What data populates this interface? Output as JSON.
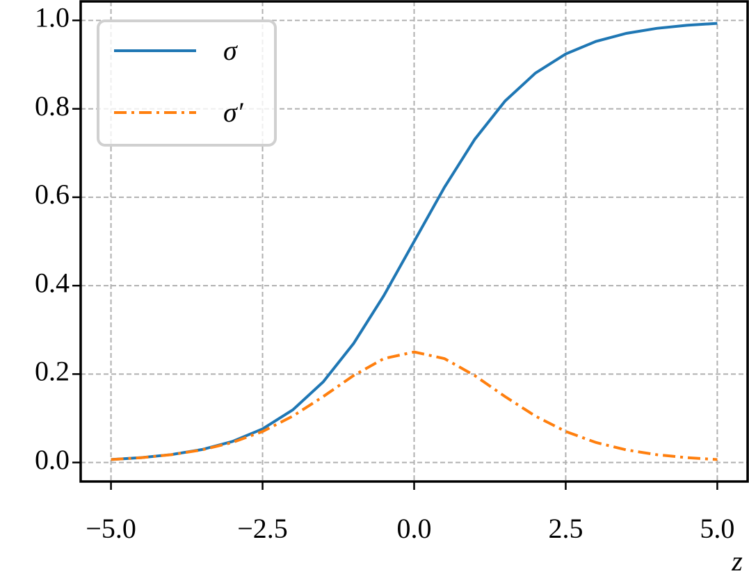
{
  "chart_data": {
    "type": "line",
    "xlabel": "z",
    "x": [
      -5,
      -4.5,
      -4,
      -3.5,
      -3,
      -2.5,
      -2,
      -1.5,
      -1,
      -0.5,
      0,
      0.5,
      1,
      1.5,
      2,
      2.5,
      3,
      3.5,
      4,
      4.5,
      5
    ],
    "series": [
      {
        "name": "σ",
        "color": "#1f77b4",
        "linestyle": "solid",
        "values": [
          0.0067,
          0.011,
          0.018,
          0.0293,
          0.0474,
          0.0759,
          0.1192,
          0.1824,
          0.2689,
          0.3775,
          0.5,
          0.6225,
          0.7311,
          0.8176,
          0.8808,
          0.9241,
          0.9526,
          0.9707,
          0.982,
          0.989,
          0.9933
        ]
      },
      {
        "name": "σ′",
        "color": "#ff7f0e",
        "linestyle": "dashdot",
        "values": [
          0.0066,
          0.0109,
          0.0177,
          0.0285,
          0.0452,
          0.0701,
          0.105,
          0.1491,
          0.1966,
          0.235,
          0.25,
          0.235,
          0.1966,
          0.1491,
          0.105,
          0.0701,
          0.0452,
          0.0285,
          0.0177,
          0.0109,
          0.0066
        ]
      }
    ],
    "xlim": [
      -5.5,
      5.5
    ],
    "ylim": [
      -0.043,
      1.043
    ],
    "xticks": [
      {
        "value": -5,
        "label": "−5.0"
      },
      {
        "value": -2.5,
        "label": "−2.5"
      },
      {
        "value": 0,
        "label": "0.0"
      },
      2.5,
      {
        "value": 5,
        "label": "5.0"
      }
    ],
    "yticks": [
      {
        "value": 0,
        "label": "0.0"
      },
      0.2,
      0.4,
      0.6,
      0.8,
      {
        "value": 1,
        "label": "1.0"
      }
    ],
    "grid": true,
    "legend": "upper left"
  }
}
